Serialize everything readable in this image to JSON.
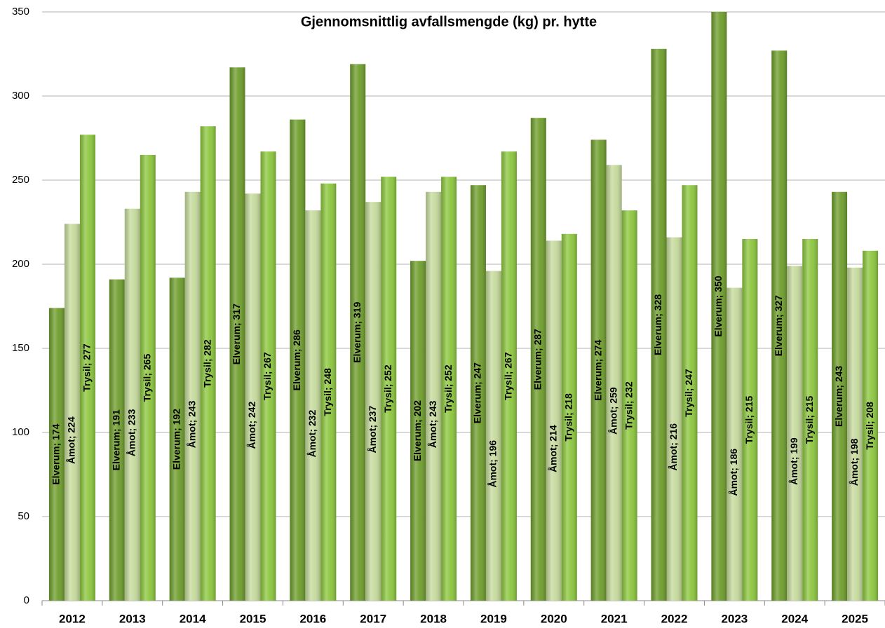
{
  "chart_data": {
    "type": "bar",
    "title": "Gjennomsnittlig avfallsmengde (kg) pr. hytte",
    "categories": [
      "2012",
      "2013",
      "2014",
      "2015",
      "2016",
      "2017",
      "2018",
      "2019",
      "2020",
      "2021",
      "2022",
      "2023",
      "2024",
      "2025"
    ],
    "series": [
      {
        "name": "Elverum",
        "color": "#6e9d2c",
        "values": [
          174,
          191,
          192,
          317,
          286,
          319,
          202,
          247,
          287,
          274,
          328,
          350,
          327,
          243
        ],
        "value_labels": [
          "Elverum; 174",
          "Elverum; 191",
          "Elverum; 192",
          "Elverum; 317",
          "Elverum; 286",
          "Elverum; 319",
          "Elverum; 202",
          "Elverum; 247",
          "Elverum; 287",
          "Elverum; 274",
          "Elverum; 328",
          "Elverum; 350",
          "Elverum; 327",
          "Elverum; 243"
        ]
      },
      {
        "name": "Åmot",
        "color": "#c5da9c",
        "values": [
          224,
          233,
          243,
          242,
          232,
          237,
          243,
          196,
          214,
          259,
          216,
          186,
          199,
          198
        ],
        "value_labels": [
          "Åmot; 224",
          "Åmot; 233",
          "Åmot; 243",
          "Åmot; 242",
          "Åmot; 232",
          "Åmot; 237",
          "Åmot; 243",
          "Åmot; 196",
          "Åmot; 214",
          "Åmot; 259",
          "Åmot; 216",
          "Åmot; 186",
          "Åmot; 199",
          "Åmot; 198"
        ]
      },
      {
        "name": "Trysil",
        "color": "#8cc63e",
        "values": [
          277,
          265,
          282,
          267,
          248,
          252,
          252,
          267,
          218,
          232,
          247,
          215,
          215,
          208
        ],
        "value_labels": [
          "Trysil; 277",
          "Trysil; 265",
          "Trysil; 282",
          "Trysil; 267",
          "Trysil; 248",
          "Trysil; 252",
          "Trysil; 252",
          "Trysil; 267",
          "Trysil; 218",
          "Trysil; 232",
          "Trysil; 247",
          "Trysil; 215",
          "Trysil; 215",
          "Trysil; 208"
        ]
      }
    ],
    "ylim": [
      0,
      350
    ],
    "yticks": [
      0,
      50,
      100,
      150,
      200,
      250,
      300,
      350
    ],
    "grid": true
  }
}
